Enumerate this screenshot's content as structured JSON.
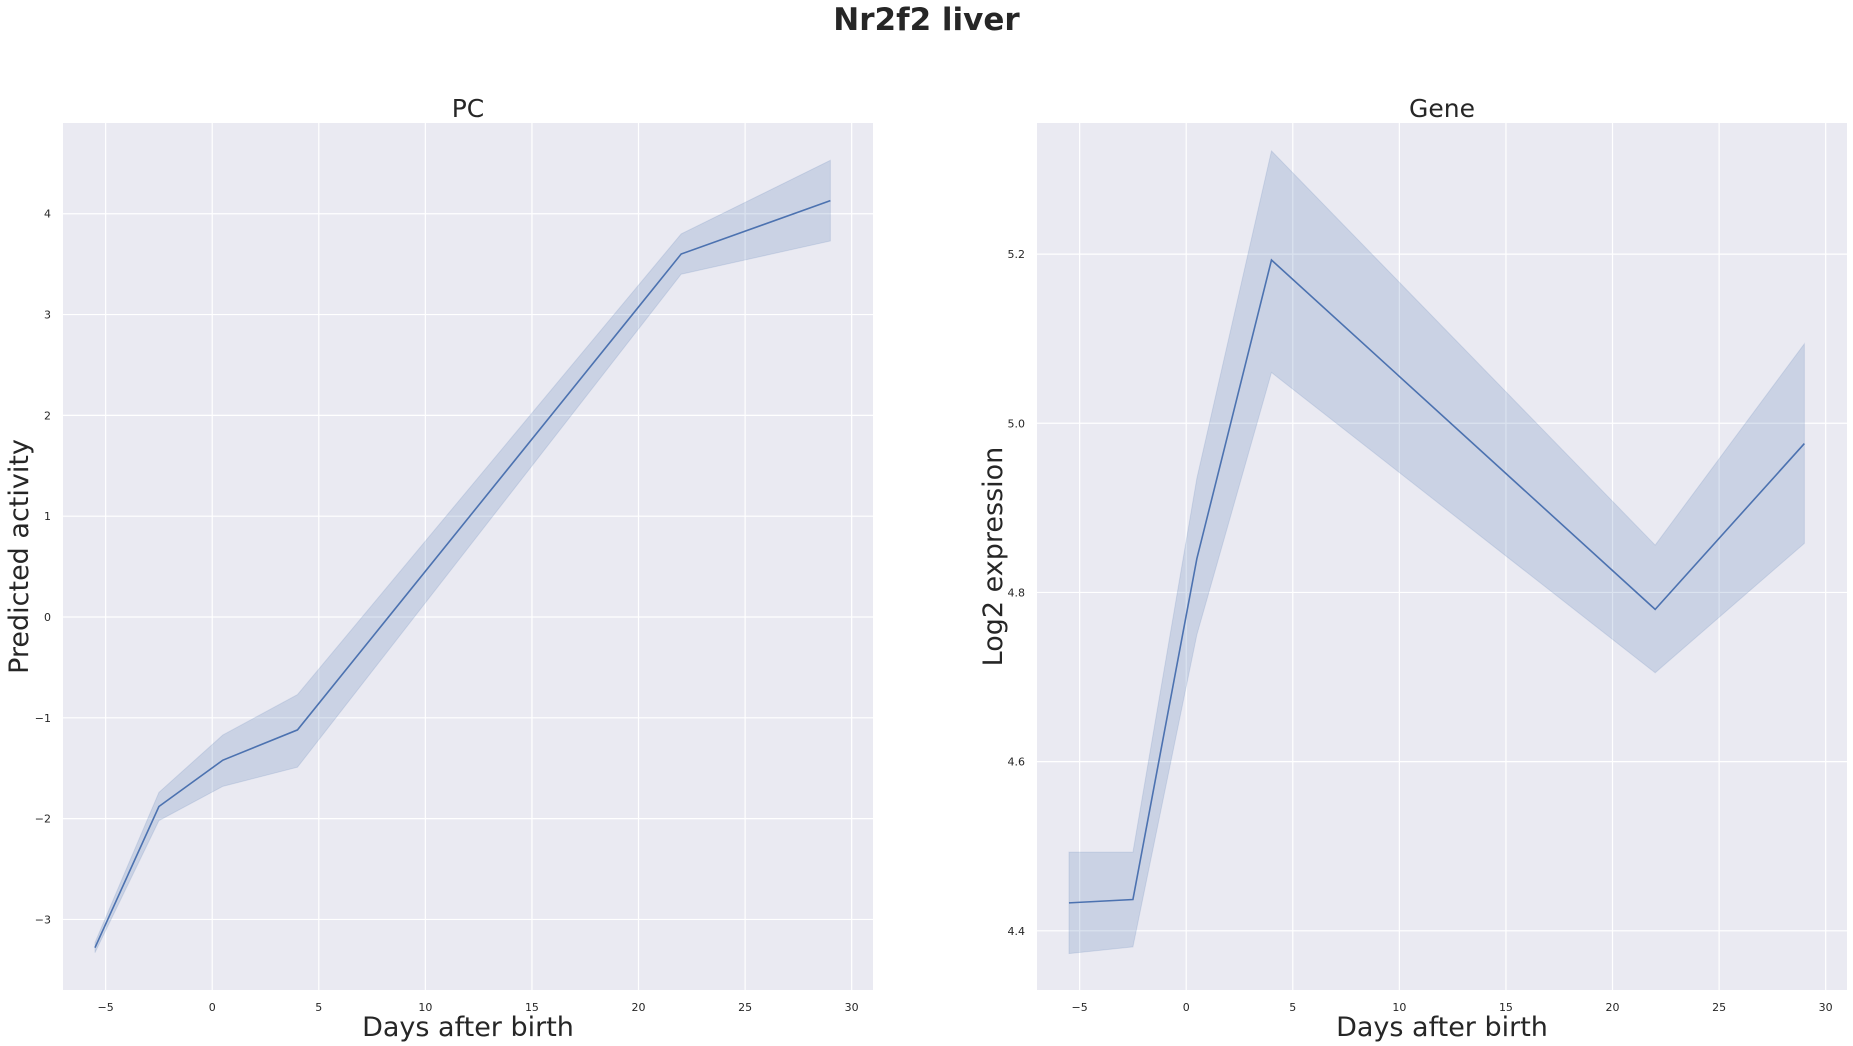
{
  "figure": {
    "suptitle": "Nr2f2 liver"
  },
  "chart_data": [
    {
      "type": "line",
      "title": "PC",
      "xlabel": "Days after birth",
      "ylabel": "Predicted activity",
      "xlim": [
        -7,
        31
      ],
      "ylim": [
        -3.7,
        4.9
      ],
      "xticks": [
        -5,
        0,
        5,
        10,
        15,
        20,
        25,
        30
      ],
      "xtick_labels": [
        "−5",
        "0",
        "5",
        "10",
        "15",
        "20",
        "25",
        "30"
      ],
      "yticks": [
        -3,
        -2,
        -1,
        0,
        1,
        2,
        3,
        4
      ],
      "ytick_labels": [
        "−3",
        "−2",
        "−1",
        "0",
        "1",
        "2",
        "3",
        "4"
      ],
      "grid": true,
      "series": [
        {
          "name": "Nr2f2",
          "color": "#4c72b0",
          "x": [
            -5.5,
            -2.5,
            0.5,
            4,
            22,
            29
          ],
          "y": [
            -3.28,
            -1.88,
            -1.42,
            -1.12,
            3.6,
            4.13
          ],
          "ci_lower": [
            -3.33,
            -2.02,
            -1.68,
            -1.49,
            3.4,
            3.73
          ],
          "ci_upper": [
            -3.23,
            -1.74,
            -1.17,
            -0.77,
            3.8,
            4.53
          ]
        }
      ]
    },
    {
      "type": "line",
      "title": "Gene",
      "xlabel": "Days after birth",
      "ylabel": "Log2 expression",
      "xlim": [
        -7,
        31
      ],
      "ylim": [
        4.33,
        5.355
      ],
      "xticks": [
        -5,
        0,
        5,
        10,
        15,
        20,
        25,
        30
      ],
      "xtick_labels": [
        "−5",
        "0",
        "5",
        "10",
        "15",
        "20",
        "25",
        "30"
      ],
      "yticks": [
        4.4,
        4.6,
        4.8,
        5.0,
        5.2
      ],
      "ytick_labels": [
        "4.4",
        "4.6",
        "4.8",
        "5.0",
        "5.2"
      ],
      "grid": true,
      "series": [
        {
          "name": "Nr2f2",
          "color": "#4c72b0",
          "x": [
            -5.5,
            -2.5,
            0.5,
            4,
            22,
            29
          ],
          "y": [
            4.433,
            4.437,
            4.84,
            5.193,
            4.78,
            4.976
          ],
          "ci_lower": [
            4.373,
            4.381,
            4.75,
            5.06,
            4.705,
            4.858
          ],
          "ci_upper": [
            4.493,
            4.493,
            4.935,
            5.322,
            4.856,
            5.094
          ]
        }
      ]
    }
  ]
}
